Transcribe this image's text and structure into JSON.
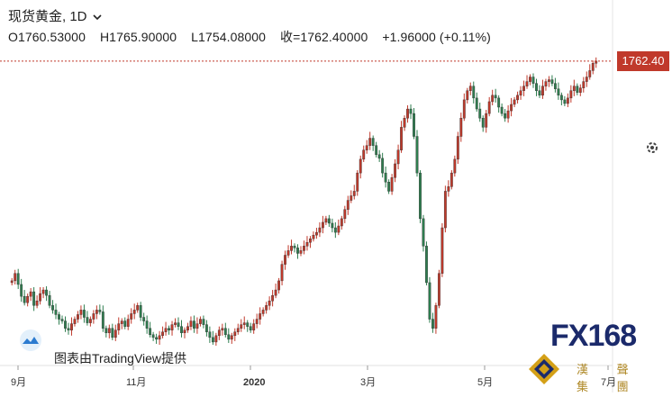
{
  "header": {
    "title": "现货黄金, 1D",
    "chevron": "chevron-down-icon",
    "open": "O1760.53000",
    "high": "H1765.90000",
    "low": "L1754.08000",
    "close": "收=1762.40000",
    "change": "+1.96000 (+0.11%)"
  },
  "price_label": "1762.40",
  "brand_text": "图表由TradingView提供",
  "logo": {
    "name": "FX168",
    "subtitle": "漢 聲 集 團"
  },
  "colors": {
    "up": "#c0392b",
    "down": "#2e7d4f",
    "line": "#c0392b",
    "logo_blue": "#1b2a6b",
    "logo_gold": "#d4a017"
  },
  "chart_data": {
    "type": "candlestick",
    "x_ticks": [
      "9月",
      "11月",
      "2020",
      "3月",
      "5月",
      "7月"
    ],
    "last_price": 1762.4,
    "y_range": [
      1450,
      1780
    ],
    "series": [
      {
        "values": [
          1522,
          1530,
          1518,
          1505,
          1498,
          1505,
          1510,
          1495,
          1500,
          1508,
          1512,
          1506,
          1495,
          1490,
          1485,
          1480,
          1478,
          1470,
          1468,
          1475,
          1480,
          1485,
          1490,
          1482,
          1476,
          1480,
          1486,
          1490,
          1488,
          1470,
          1465,
          1470,
          1460,
          1468,
          1475,
          1478,
          1472,
          1480,
          1486,
          1490,
          1495,
          1482,
          1478,
          1470,
          1463,
          1460,
          1458,
          1462,
          1466,
          1470,
          1468,
          1474,
          1476,
          1472,
          1465,
          1468,
          1472,
          1478,
          1470,
          1475,
          1480,
          1474,
          1466,
          1460,
          1455,
          1462,
          1468,
          1470,
          1463,
          1458,
          1462,
          1466,
          1470,
          1474,
          1476,
          1472,
          1468,
          1475,
          1480,
          1486,
          1490,
          1495,
          1500,
          1506,
          1512,
          1522,
          1540,
          1550,
          1555,
          1560,
          1558,
          1552,
          1555,
          1560,
          1564,
          1568,
          1572,
          1575,
          1580,
          1586,
          1590,
          1585,
          1580,
          1575,
          1582,
          1590,
          1600,
          1610,
          1615,
          1620,
          1640,
          1655,
          1665,
          1670,
          1678,
          1670,
          1660,
          1656,
          1640,
          1630,
          1620,
          1635,
          1650,
          1665,
          1690,
          1700,
          1710,
          1705,
          1680,
          1640,
          1590,
          1560,
          1520,
          1480,
          1470,
          1495,
          1530,
          1580,
          1620,
          1625,
          1640,
          1655,
          1680,
          1700,
          1720,
          1730,
          1735,
          1722,
          1710,
          1700,
          1690,
          1705,
          1718,
          1725,
          1722,
          1712,
          1705,
          1700,
          1708,
          1715,
          1720,
          1725,
          1730,
          1735,
          1740,
          1745,
          1738,
          1730,
          1725,
          1735,
          1740,
          1742,
          1738,
          1732,
          1725,
          1720,
          1716,
          1722,
          1730,
          1735,
          1728,
          1733,
          1740,
          1745,
          1752,
          1760,
          1762.4
        ]
      }
    ],
    "annotations": []
  }
}
